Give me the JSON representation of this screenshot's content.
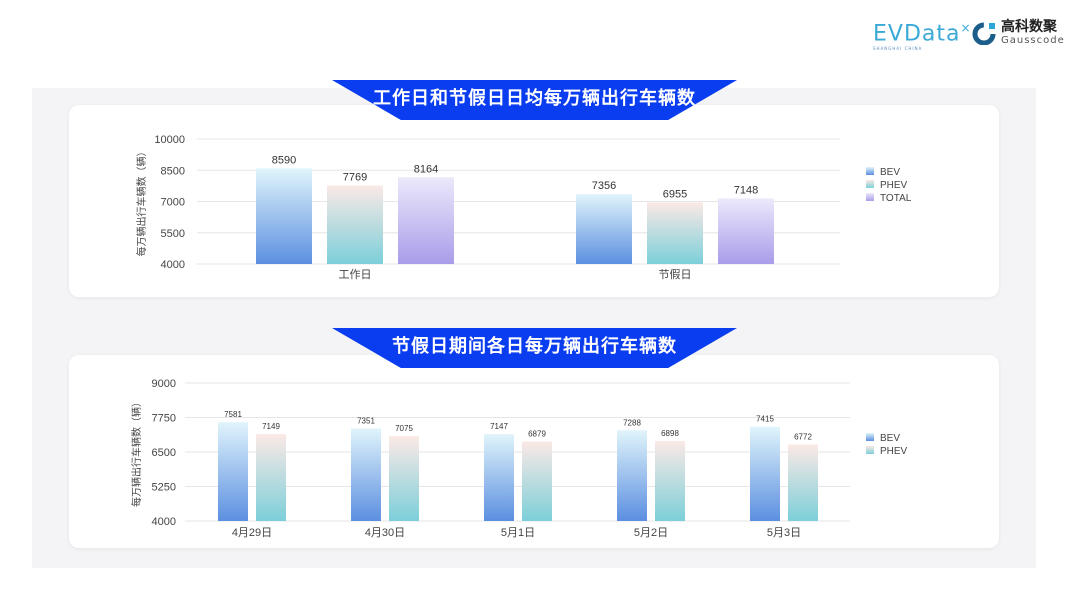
{
  "logos": {
    "evdata": "EVData",
    "evdata_sub": "SHANGHAI CHINA",
    "gauss_cn": "高科数聚",
    "gauss_en": "Gausscode"
  },
  "colors": {
    "banner": "#0a3cf0",
    "BEV": [
      "#e0f4fb",
      "#5b8fe0"
    ],
    "PHEV": [
      "#fbe9e6",
      "#7ccfd9"
    ],
    "TOTAL": [
      "#ece9fb",
      "#a99ce9"
    ]
  },
  "chart_data": [
    {
      "type": "bar",
      "title": "工作日和节假日日均每万辆出行车辆数",
      "ylabel": "每万辆出行车辆数（辆）",
      "xlabel": "",
      "ylim": [
        4000,
        10000
      ],
      "yticks": [
        "10000",
        "8500",
        "7000",
        "5500",
        "4000"
      ],
      "grid": true,
      "legend": "right",
      "categories": [
        "工作日",
        "节假日"
      ],
      "series": [
        {
          "name": "BEV",
          "values": [
            8590,
            7356
          ]
        },
        {
          "name": "PHEV",
          "values": [
            7769,
            6955
          ]
        },
        {
          "name": "TOTAL",
          "values": [
            8164,
            7148
          ]
        }
      ]
    },
    {
      "type": "bar",
      "title": "节假日期间各日每万辆出行车辆数",
      "ylabel": "每万辆出行车辆数（辆）",
      "xlabel": "",
      "ylim": [
        4000,
        9000
      ],
      "yticks": [
        "9000",
        "7750",
        "6500",
        "5250",
        "4000"
      ],
      "grid": true,
      "legend": "right",
      "categories": [
        "4月29日",
        "4月30日",
        "5月1日",
        "5月2日",
        "5月3日"
      ],
      "series": [
        {
          "name": "BEV",
          "values": [
            7581,
            7351,
            7147,
            7288,
            7415
          ]
        },
        {
          "name": "PHEV",
          "values": [
            7149,
            7075,
            6879,
            6898,
            6772
          ]
        }
      ]
    }
  ]
}
